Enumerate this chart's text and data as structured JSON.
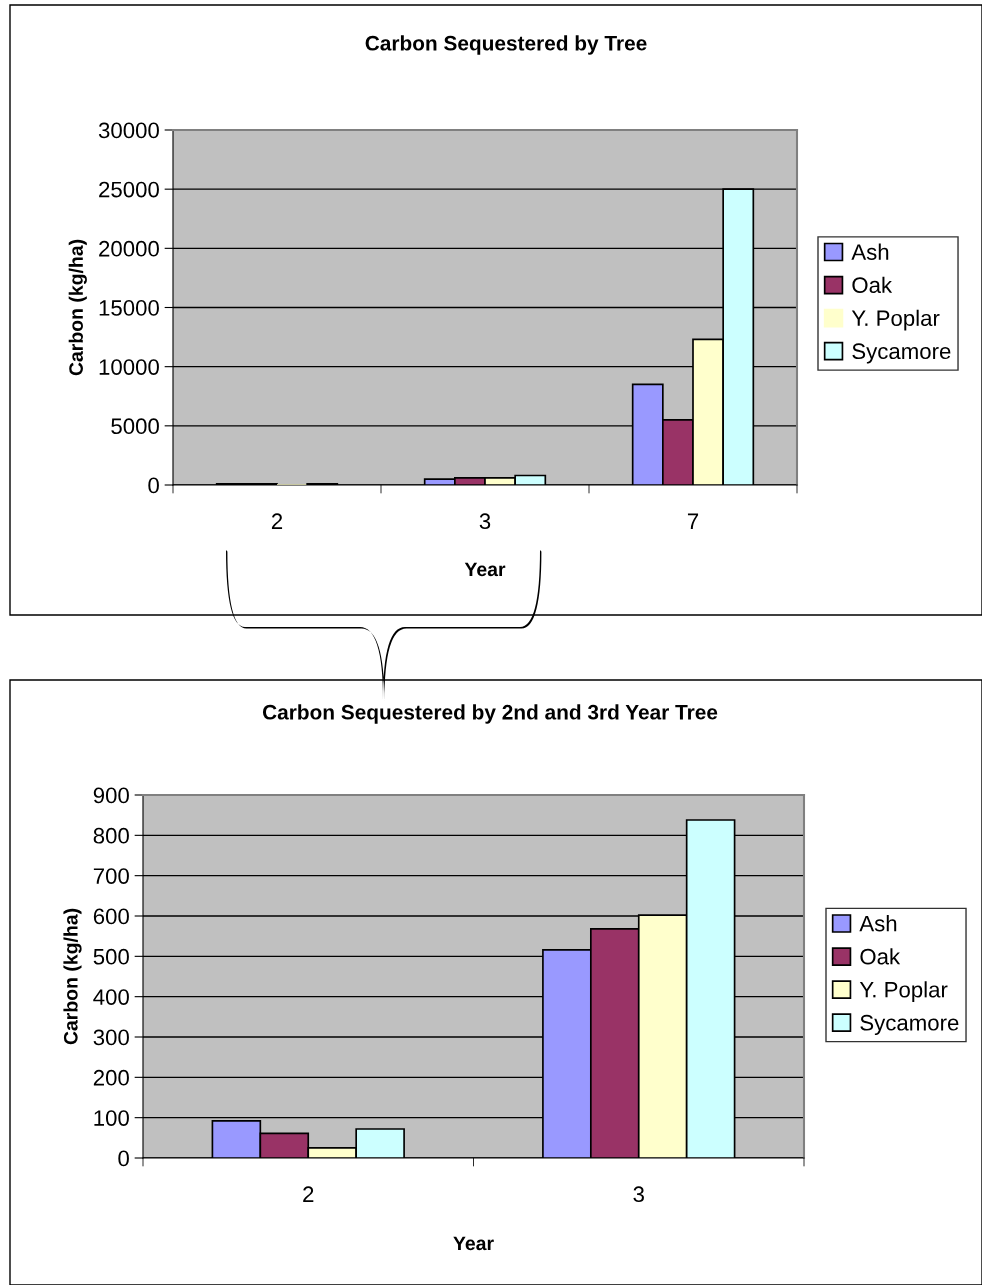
{
  "chart_data": [
    {
      "type": "bar",
      "title": "Carbon Sequestered by Tree",
      "xlabel": "Year",
      "ylabel": "Carbon (kg/ha)",
      "categories": [
        "2",
        "3",
        "7"
      ],
      "series": [
        {
          "name": "Ash",
          "color": "#9999ff",
          "values": [
            100,
            500,
            8500
          ]
        },
        {
          "name": "Oak",
          "color": "#993366",
          "values": [
            100,
            600,
            5500
          ]
        },
        {
          "name": "Y. Poplar",
          "color": "#ffffcc",
          "values": [
            0,
            600,
            12300
          ]
        },
        {
          "name": "Sycamore",
          "color": "#ccffff",
          "values": [
            100,
            800,
            25000
          ]
        }
      ],
      "ylim": [
        0,
        30000
      ],
      "yticks": [
        0,
        5000,
        10000,
        15000,
        20000,
        25000,
        30000
      ],
      "grid": "y",
      "legend": "right"
    },
    {
      "type": "bar",
      "title": "Carbon Sequestered by 2nd and 3rd Year Tree",
      "xlabel": "Year",
      "ylabel": "Carbon (kg/ha)",
      "categories": [
        "2",
        "3"
      ],
      "series": [
        {
          "name": "Ash",
          "color": "#9999ff",
          "values": [
            92,
            516
          ]
        },
        {
          "name": "Oak",
          "color": "#993366",
          "values": [
            61,
            568
          ]
        },
        {
          "name": "Y. Poplar",
          "color": "#ffffcc",
          "values": [
            25,
            602
          ]
        },
        {
          "name": "Sycamore",
          "color": "#ccffff",
          "values": [
            72,
            838
          ]
        }
      ],
      "ylim": [
        0,
        900
      ],
      "yticks": [
        0,
        100,
        200,
        300,
        400,
        500,
        600,
        700,
        800,
        900
      ],
      "grid": "y",
      "legend": "right"
    }
  ]
}
